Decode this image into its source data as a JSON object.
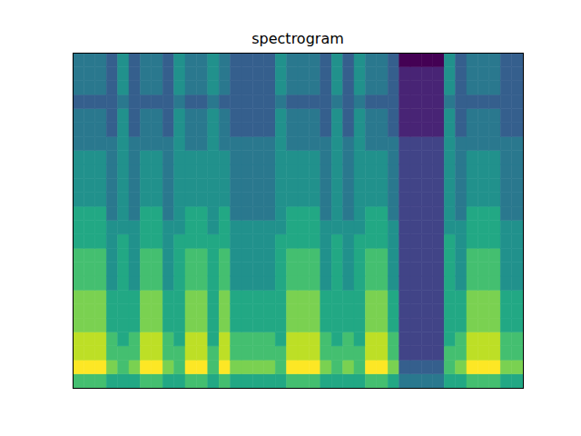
{
  "chart_data": {
    "type": "heatmap",
    "title": "spectrogram",
    "tick_labels": false,
    "xlim": [
      0,
      40
    ],
    "ylim": [
      0,
      24
    ],
    "zlim": [
      0,
      10
    ],
    "z": [
      [
        7,
        7,
        7,
        6,
        6,
        6,
        7,
        7,
        6,
        6,
        7,
        7,
        6,
        7,
        6,
        6,
        6,
        6,
        6,
        7,
        7,
        7,
        6,
        6,
        6,
        6,
        7,
        7,
        6,
        4,
        4,
        4,
        4,
        6,
        6,
        7,
        7,
        7,
        6,
        6
      ],
      [
        10,
        10,
        10,
        8,
        7,
        8,
        10,
        10,
        8,
        7,
        10,
        10,
        7,
        10,
        8,
        8,
        8,
        8,
        7,
        10,
        10,
        10,
        8,
        7,
        8,
        7,
        10,
        10,
        8,
        3,
        3,
        3,
        3,
        7,
        8,
        10,
        10,
        10,
        8,
        8
      ],
      [
        9,
        9,
        9,
        7,
        7,
        7,
        9,
        9,
        7,
        7,
        9,
        9,
        7,
        9,
        7,
        7,
        7,
        7,
        7,
        9,
        9,
        9,
        7,
        7,
        7,
        7,
        9,
        9,
        7,
        2,
        2,
        2,
        2,
        7,
        7,
        9,
        9,
        9,
        7,
        7
      ],
      [
        9,
        9,
        9,
        7,
        6,
        7,
        9,
        9,
        7,
        6,
        9,
        9,
        6,
        9,
        7,
        7,
        7,
        7,
        6,
        9,
        9,
        9,
        7,
        6,
        7,
        6,
        9,
        9,
        7,
        2,
        2,
        2,
        2,
        6,
        7,
        9,
        9,
        9,
        7,
        7
      ],
      [
        8,
        8,
        8,
        6,
        6,
        6,
        8,
        8,
        6,
        6,
        8,
        8,
        6,
        8,
        6,
        6,
        6,
        6,
        6,
        8,
        8,
        8,
        6,
        6,
        6,
        6,
        8,
        8,
        6,
        2,
        2,
        2,
        2,
        6,
        6,
        8,
        8,
        8,
        6,
        6
      ],
      [
        8,
        8,
        8,
        6,
        6,
        6,
        8,
        8,
        6,
        6,
        8,
        8,
        6,
        8,
        6,
        6,
        6,
        6,
        6,
        8,
        8,
        8,
        6,
        6,
        6,
        6,
        8,
        8,
        6,
        2,
        2,
        2,
        2,
        6,
        6,
        8,
        8,
        8,
        6,
        6
      ],
      [
        8,
        8,
        8,
        6,
        6,
        6,
        8,
        8,
        6,
        6,
        8,
        8,
        6,
        8,
        6,
        6,
        6,
        6,
        6,
        8,
        8,
        8,
        6,
        6,
        6,
        6,
        8,
        8,
        6,
        2,
        2,
        2,
        2,
        6,
        6,
        8,
        8,
        8,
        6,
        6
      ],
      [
        7,
        7,
        7,
        5,
        6,
        5,
        7,
        7,
        5,
        6,
        7,
        7,
        6,
        7,
        5,
        5,
        5,
        5,
        6,
        7,
        7,
        7,
        5,
        6,
        5,
        6,
        7,
        7,
        5,
        2,
        2,
        2,
        2,
        6,
        5,
        7,
        7,
        7,
        5,
        5
      ],
      [
        7,
        7,
        7,
        5,
        6,
        5,
        7,
        7,
        5,
        6,
        7,
        7,
        6,
        7,
        5,
        5,
        5,
        5,
        6,
        7,
        7,
        7,
        5,
        6,
        5,
        6,
        7,
        7,
        5,
        2,
        2,
        2,
        2,
        6,
        5,
        7,
        7,
        7,
        5,
        5
      ],
      [
        7,
        7,
        7,
        5,
        6,
        5,
        7,
        7,
        5,
        6,
        7,
        7,
        6,
        7,
        5,
        5,
        5,
        5,
        6,
        7,
        7,
        7,
        5,
        6,
        5,
        6,
        7,
        7,
        5,
        2,
        2,
        2,
        2,
        6,
        5,
        7,
        7,
        7,
        5,
        5
      ],
      [
        6,
        6,
        6,
        5,
        6,
        5,
        6,
        6,
        5,
        6,
        6,
        6,
        6,
        6,
        5,
        5,
        5,
        5,
        6,
        6,
        6,
        6,
        5,
        6,
        5,
        6,
        6,
        6,
        5,
        2,
        2,
        2,
        2,
        6,
        5,
        6,
        6,
        6,
        5,
        5
      ],
      [
        6,
        6,
        6,
        5,
        5,
        5,
        6,
        6,
        5,
        5,
        6,
        6,
        5,
        6,
        5,
        5,
        5,
        5,
        5,
        6,
        6,
        6,
        5,
        5,
        5,
        5,
        6,
        6,
        5,
        2,
        2,
        2,
        2,
        5,
        5,
        6,
        6,
        6,
        5,
        5
      ],
      [
        6,
        6,
        6,
        4,
        5,
        4,
        6,
        6,
        4,
        5,
        6,
        6,
        5,
        6,
        4,
        4,
        4,
        4,
        5,
        6,
        6,
        6,
        4,
        5,
        4,
        5,
        6,
        6,
        4,
        2,
        2,
        2,
        2,
        5,
        4,
        6,
        6,
        6,
        4,
        4
      ],
      [
        5,
        5,
        5,
        4,
        5,
        4,
        5,
        5,
        4,
        5,
        5,
        5,
        5,
        5,
        4,
        4,
        4,
        4,
        5,
        5,
        5,
        5,
        4,
        5,
        4,
        5,
        5,
        5,
        4,
        2,
        2,
        2,
        2,
        5,
        4,
        5,
        5,
        5,
        4,
        4
      ],
      [
        5,
        5,
        5,
        4,
        5,
        4,
        5,
        5,
        4,
        5,
        5,
        5,
        5,
        5,
        4,
        4,
        4,
        4,
        5,
        5,
        5,
        5,
        4,
        5,
        4,
        5,
        5,
        5,
        4,
        2,
        2,
        2,
        2,
        5,
        4,
        5,
        5,
        5,
        4,
        4
      ],
      [
        5,
        5,
        5,
        4,
        5,
        4,
        5,
        5,
        4,
        5,
        5,
        5,
        5,
        5,
        4,
        4,
        4,
        4,
        5,
        5,
        5,
        5,
        4,
        5,
        4,
        5,
        5,
        5,
        4,
        2,
        2,
        2,
        2,
        5,
        4,
        5,
        5,
        5,
        4,
        4
      ],
      [
        5,
        5,
        5,
        4,
        5,
        4,
        5,
        5,
        4,
        5,
        5,
        5,
        5,
        5,
        4,
        4,
        4,
        4,
        5,
        5,
        5,
        5,
        4,
        5,
        4,
        5,
        5,
        5,
        4,
        2,
        2,
        2,
        2,
        5,
        4,
        5,
        5,
        5,
        4,
        4
      ],
      [
        4,
        4,
        4,
        4,
        5,
        4,
        4,
        4,
        4,
        5,
        4,
        4,
        5,
        4,
        4,
        4,
        4,
        4,
        5,
        4,
        4,
        4,
        4,
        5,
        4,
        5,
        4,
        4,
        4,
        2,
        2,
        2,
        2,
        5,
        4,
        4,
        4,
        4,
        4,
        4
      ],
      [
        4,
        4,
        4,
        3,
        5,
        3,
        4,
        4,
        3,
        5,
        4,
        4,
        5,
        4,
        3,
        3,
        3,
        3,
        5,
        4,
        4,
        4,
        3,
        5,
        3,
        5,
        4,
        4,
        3,
        1,
        1,
        1,
        1,
        5,
        3,
        4,
        4,
        4,
        3,
        3
      ],
      [
        4,
        4,
        4,
        3,
        5,
        3,
        4,
        4,
        3,
        5,
        4,
        4,
        5,
        4,
        3,
        3,
        3,
        3,
        5,
        4,
        4,
        4,
        3,
        5,
        3,
        5,
        4,
        4,
        3,
        1,
        1,
        1,
        1,
        5,
        3,
        4,
        4,
        4,
        3,
        3
      ],
      [
        3,
        3,
        3,
        3,
        4,
        3,
        3,
        3,
        3,
        4,
        3,
        3,
        4,
        3,
        3,
        3,
        3,
        3,
        4,
        3,
        3,
        3,
        3,
        4,
        3,
        4,
        3,
        3,
        3,
        1,
        1,
        1,
        1,
        4,
        3,
        3,
        3,
        3,
        3,
        3
      ],
      [
        4,
        4,
        4,
        3,
        5,
        3,
        4,
        4,
        3,
        5,
        4,
        4,
        5,
        4,
        3,
        3,
        3,
        3,
        5,
        4,
        4,
        4,
        3,
        5,
        3,
        5,
        4,
        4,
        3,
        1,
        1,
        1,
        1,
        5,
        3,
        4,
        4,
        4,
        3,
        3
      ],
      [
        4,
        4,
        4,
        3,
        5,
        3,
        4,
        4,
        3,
        5,
        4,
        4,
        5,
        4,
        3,
        3,
        3,
        3,
        5,
        4,
        4,
        4,
        3,
        5,
        3,
        5,
        4,
        4,
        3,
        1,
        1,
        1,
        1,
        5,
        3,
        4,
        4,
        4,
        3,
        3
      ],
      [
        4,
        4,
        4,
        3,
        5,
        3,
        4,
        4,
        3,
        5,
        4,
        4,
        5,
        4,
        3,
        3,
        3,
        3,
        5,
        4,
        4,
        4,
        3,
        5,
        3,
        5,
        4,
        4,
        3,
        0,
        0,
        0,
        0,
        5,
        3,
        4,
        4,
        4,
        3,
        3
      ]
    ]
  }
}
